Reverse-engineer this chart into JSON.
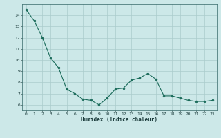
{
  "x": [
    0,
    1,
    2,
    3,
    4,
    5,
    6,
    7,
    8,
    9,
    10,
    11,
    12,
    13,
    14,
    15,
    16,
    17,
    18,
    19,
    20,
    21,
    22,
    23
  ],
  "y": [
    14.5,
    13.5,
    12.0,
    10.2,
    9.3,
    7.4,
    7.0,
    6.5,
    6.4,
    6.0,
    6.6,
    7.4,
    7.5,
    8.2,
    8.4,
    8.8,
    8.3,
    6.8,
    6.8,
    6.6,
    6.4,
    6.3,
    6.3,
    6.4
  ],
  "line_color": "#1a6b5a",
  "marker_color": "#1a6b5a",
  "bg_color": "#cce8e8",
  "grid_color": "#aacccc",
  "xlabel": "Humidex (Indice chaleur)",
  "ylim": [
    5.5,
    15.0
  ],
  "xlim": [
    -0.5,
    23.5
  ],
  "yticks": [
    6,
    7,
    8,
    9,
    10,
    11,
    12,
    13,
    14
  ],
  "xticks": [
    0,
    1,
    2,
    3,
    4,
    5,
    6,
    7,
    8,
    9,
    10,
    11,
    12,
    13,
    14,
    15,
    16,
    17,
    18,
    19,
    20,
    21,
    22,
    23
  ]
}
